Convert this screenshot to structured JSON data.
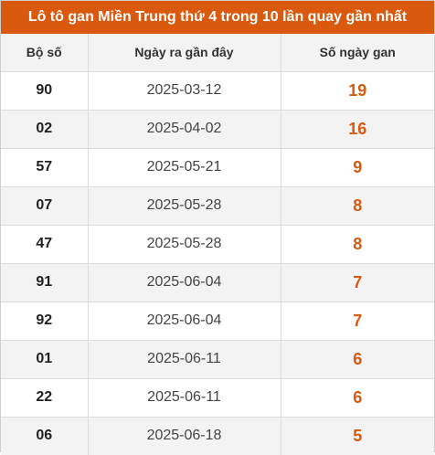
{
  "title": "Lô tô gan Miền Trung thứ 4 trong 10 lần quay gần nhất",
  "colors": {
    "accent": "#d9590e",
    "stripe": "#f3f3f3"
  },
  "headers": {
    "number": "Bộ số",
    "date": "Ngày ra gần đây",
    "gap": "Số ngày gan"
  },
  "rows": [
    {
      "number": "90",
      "date": "2025-03-12",
      "gap": "19"
    },
    {
      "number": "02",
      "date": "2025-04-02",
      "gap": "16"
    },
    {
      "number": "57",
      "date": "2025-05-21",
      "gap": "9"
    },
    {
      "number": "07",
      "date": "2025-05-28",
      "gap": "8"
    },
    {
      "number": "47",
      "date": "2025-05-28",
      "gap": "8"
    },
    {
      "number": "91",
      "date": "2025-06-04",
      "gap": "7"
    },
    {
      "number": "92",
      "date": "2025-06-04",
      "gap": "7"
    },
    {
      "number": "01",
      "date": "2025-06-11",
      "gap": "6"
    },
    {
      "number": "22",
      "date": "2025-06-11",
      "gap": "6"
    },
    {
      "number": "06",
      "date": "2025-06-18",
      "gap": "5"
    }
  ]
}
